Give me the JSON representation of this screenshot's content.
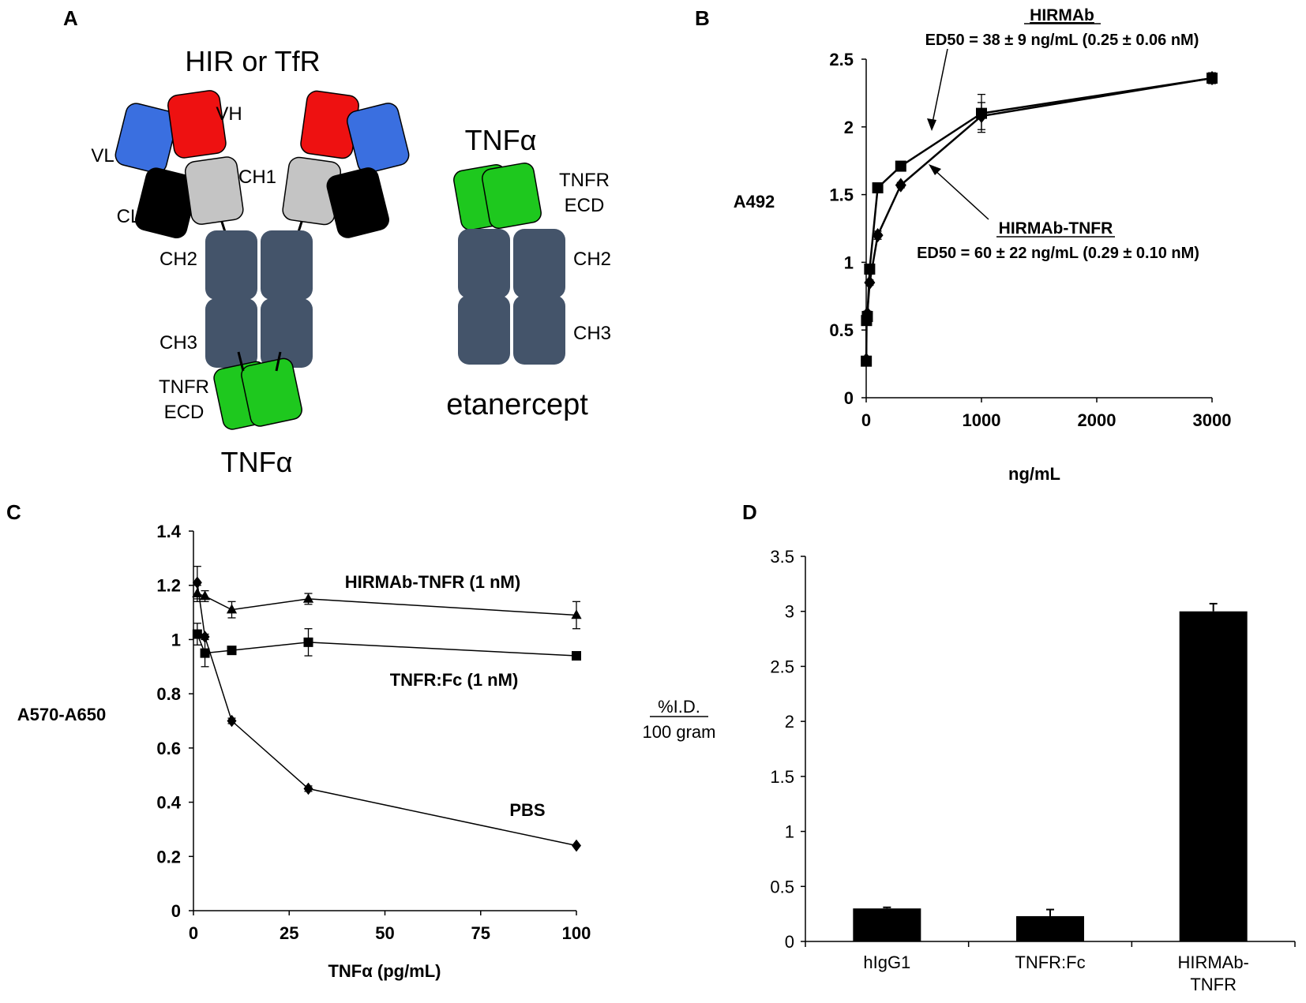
{
  "colors": {
    "vh": "#ee1111",
    "vl": "#3a6fe0",
    "ch1": "#c4c4c4",
    "cl": "#000000",
    "fc": "#44546a",
    "tnfr": "#1ec81e",
    "ink": "#000000"
  },
  "panelA": {
    "letter": "A",
    "title": "HIR or TfR",
    "vh": "VH",
    "vl": "VL",
    "ch1": "CH1",
    "cl": "CL",
    "ch2": "CH2",
    "ch3": "CH3",
    "tnfr_line1": "TNFR",
    "tnfr_line2": "ECD",
    "tnf_bottom": "TNFα",
    "etan_tnf": "TNFα",
    "etan_tnfr_line1": "TNFR",
    "etan_tnfr_line2": "ECD",
    "etan_ch2": "CH2",
    "etan_ch3": "CH3",
    "etan_name": "etanercept"
  },
  "panelB": {
    "letter": "B",
    "annot1_title": "HIRMAb",
    "annot1_text": "ED50 = 38 ± 9 ng/mL (0.25 ± 0.06 nM)",
    "annot2_title": "HIRMAb-TNFR",
    "annot2_text": "ED50 = 60 ± 22 ng/mL (0.29 ± 0.10 nM)"
  },
  "panelC": {
    "letter": "C",
    "label_hirmab": "HIRMAb-TNFR (1 nM)",
    "label_tnfrfc": "TNFR:Fc (1 nM)",
    "label_pbs": "PBS"
  },
  "panelD": {
    "letter": "D",
    "ylabel_top": "%I.D.",
    "ylabel_bottom": "100 gram"
  },
  "chart_data": [
    {
      "id": "B",
      "type": "line",
      "title": "",
      "xlabel": "ng/mL",
      "ylabel": "A492",
      "xlim": [
        0,
        3000
      ],
      "ylim": [
        0,
        2.5
      ],
      "xticks": [
        0,
        1000,
        2000,
        3000
      ],
      "yticks": [
        0,
        0.5,
        1,
        1.5,
        2,
        2.5
      ],
      "yticklabels": [
        "0",
        "0.5",
        "1",
        "1.5",
        "2",
        "2.5"
      ],
      "series": [
        {
          "name": "HIRMAb",
          "marker": "square",
          "x": [
            1,
            3,
            10,
            30,
            100,
            300,
            1000,
            3000
          ],
          "y": [
            0.27,
            0.57,
            0.6,
            0.95,
            1.55,
            1.71,
            2.1,
            2.36
          ],
          "err": [
            0.02,
            0.02,
            0.02,
            0.02,
            0.03,
            0.02,
            0.14,
            0.04
          ]
        },
        {
          "name": "HIRMAb-TNFR",
          "marker": "diamond",
          "x": [
            1,
            3,
            10,
            30,
            100,
            300,
            1000,
            3000
          ],
          "y": [
            0.28,
            0.6,
            0.62,
            0.85,
            1.2,
            1.57,
            2.08,
            2.36
          ],
          "err": [
            0.02,
            0.02,
            0.02,
            0.02,
            0.03,
            0.02,
            0.1,
            0.04
          ]
        }
      ]
    },
    {
      "id": "C",
      "type": "line",
      "title": "",
      "xlabel": "TNFα (pg/mL)",
      "ylabel": "A570-A650",
      "xlim": [
        0,
        100
      ],
      "ylim": [
        0,
        1.4
      ],
      "xticks": [
        0,
        25,
        50,
        75,
        100
      ],
      "yticks": [
        0,
        0.2,
        0.4,
        0.6,
        0.8,
        1,
        1.2,
        1.4
      ],
      "yticklabels": [
        "0",
        "0.2",
        "0.4",
        "0.6",
        "0.8",
        "1",
        "1.2",
        "1.4"
      ],
      "series": [
        {
          "name": "HIRMAb-TNFR (1 nM)",
          "marker": "triangle",
          "x": [
            1,
            3,
            10,
            30,
            100
          ],
          "y": [
            1.17,
            1.16,
            1.11,
            1.15,
            1.09
          ],
          "err": [
            0.03,
            0.02,
            0.03,
            0.02,
            0.05
          ]
        },
        {
          "name": "TNFR:Fc (1 nM)",
          "marker": "square",
          "x": [
            1,
            3,
            10,
            30,
            100
          ],
          "y": [
            1.02,
            0.95,
            0.96,
            0.99,
            0.94
          ],
          "err": [
            0.04,
            0.05,
            0.01,
            0.05,
            0.01
          ]
        },
        {
          "name": "PBS",
          "marker": "diamond",
          "x": [
            1,
            3,
            10,
            30,
            100
          ],
          "y": [
            1.21,
            1.01,
            0.7,
            0.45,
            0.24
          ],
          "err": [
            0.06,
            0.01,
            0.01,
            0.01,
            0.0
          ]
        }
      ]
    },
    {
      "id": "D",
      "type": "bar",
      "title": "",
      "xlabel": "",
      "ylabel": "%I.D./100 gram",
      "ylim": [
        0,
        3.5
      ],
      "yticks": [
        0,
        0.5,
        1,
        1.5,
        2,
        2.5,
        3,
        3.5
      ],
      "yticklabels": [
        "0",
        "0.5",
        "1",
        "1.5",
        "2",
        "2.5",
        "3",
        "3.5"
      ],
      "categories": [
        [
          "hIgG1"
        ],
        [
          "TNFR:Fc"
        ],
        [
          "HIRMAb-",
          "TNFR"
        ]
      ],
      "values": [
        0.3,
        0.23,
        3.0
      ],
      "err": [
        0.01,
        0.06,
        0.07
      ]
    }
  ]
}
